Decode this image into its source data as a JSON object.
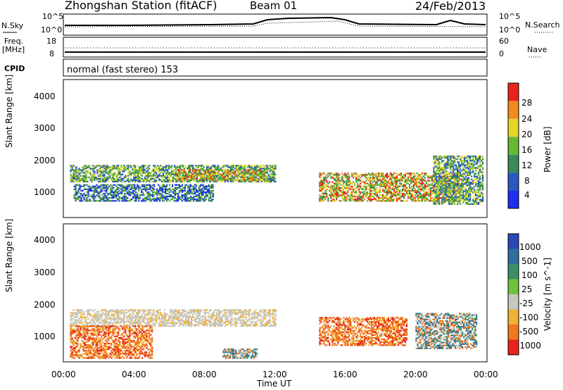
{
  "header": {
    "station": "Zhongshan Station (fitACF)",
    "beam": "Beam 01",
    "date": "24/Feb/2013"
  },
  "summary": {
    "nsky_label": "N.Sky",
    "nsearch_label": "N.Search",
    "nsky_ticks": [
      "10^5",
      "10^0"
    ],
    "nsearch_ticks": [
      "10^5",
      "10^0"
    ],
    "freq_label": "Freq.",
    "freq_unit": "[MHz]",
    "freq_ticks": [
      "18",
      "8"
    ],
    "nave_label": "Nave",
    "nave_ticks": [
      "60",
      "0"
    ],
    "cpid_label": "CPID",
    "cpid_text": "normal (fast stereo) 153"
  },
  "chart_data": [
    {
      "type": "heatmap",
      "name": "power",
      "ylabel": "Slant Range [km]",
      "yticks": [
        "4000",
        "3000",
        "2000",
        "1000"
      ],
      "ylim": [
        200,
        4500
      ],
      "colorbar": {
        "label": "Power [dB]",
        "ticks": [
          "28",
          "24",
          "20",
          "16",
          "12",
          "8",
          "4"
        ],
        "colors": [
          "#1e2ef0",
          "#2a58c0",
          "#3b8a5a",
          "#66b832",
          "#e3d628",
          "#f08a1e",
          "#e8241a"
        ]
      },
      "regions": [
        {
          "t0": 0.3,
          "t1": 12.0,
          "r0": 1300,
          "r1": 1800,
          "level": "mid"
        },
        {
          "t0": 0.5,
          "t1": 8.5,
          "r0": 700,
          "r1": 1200,
          "level": "low"
        },
        {
          "t0": 6.3,
          "t1": 11.5,
          "r0": 1350,
          "r1": 1700,
          "level": "high"
        },
        {
          "t0": 14.5,
          "t1": 22.5,
          "r0": 700,
          "r1": 1600,
          "level": "high"
        },
        {
          "t0": 21.0,
          "t1": 23.8,
          "r0": 600,
          "r1": 2100,
          "level": "mid"
        }
      ]
    },
    {
      "type": "heatmap",
      "name": "velocity",
      "ylabel": "Slant Range [km]",
      "yticks": [
        "4000",
        "3000",
        "2000",
        "1000"
      ],
      "ylim": [
        200,
        4500
      ],
      "xlabel": "Time UT",
      "xticks": [
        "00:00",
        "04:00",
        "08:00",
        "12:00",
        "16:00",
        "20:00",
        "00:00"
      ],
      "colorbar": {
        "label": "Velocity [m s^-1]",
        "ticks": [
          "1000",
          "500",
          "100",
          "25",
          "-25",
          "-100",
          "-500",
          "-1000"
        ],
        "colors": [
          "#2a48b8",
          "#2f6ea0",
          "#3b8f6a",
          "#6cc23a",
          "#c8c8c0",
          "#f2b035",
          "#f07820",
          "#e8241a"
        ]
      },
      "regions": [
        {
          "t0": 0.3,
          "t1": 12.0,
          "r0": 1300,
          "r1": 1800,
          "level": "grey"
        },
        {
          "t0": 0.3,
          "t1": 5.0,
          "r0": 300,
          "r1": 1300,
          "level": "orange"
        },
        {
          "t0": 14.5,
          "t1": 19.5,
          "r0": 700,
          "r1": 1600,
          "level": "orange"
        },
        {
          "t0": 20.0,
          "t1": 23.5,
          "r0": 600,
          "r1": 1700,
          "level": "green"
        },
        {
          "t0": 9.0,
          "t1": 11.0,
          "r0": 300,
          "r1": 600,
          "level": "green"
        }
      ]
    }
  ]
}
